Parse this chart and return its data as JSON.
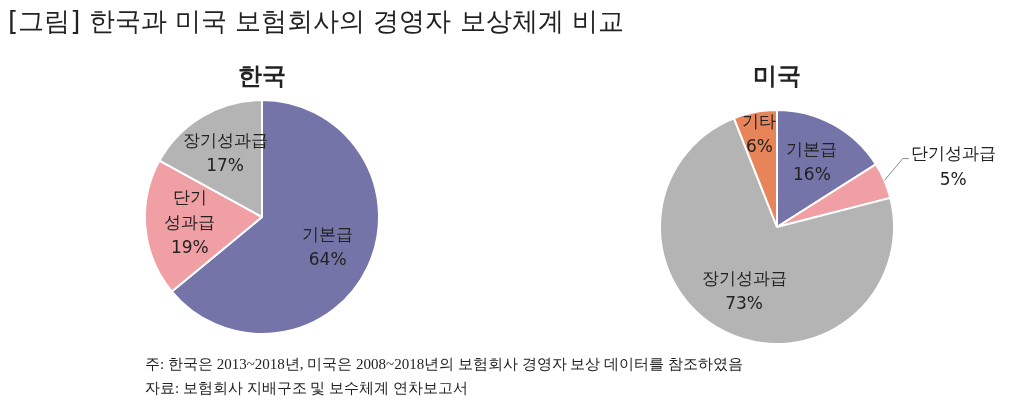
{
  "chart_data": [
    {
      "type": "pie",
      "title": "한국",
      "annotations": [
        "[그림] 한국과 미국 보험회사의 경영자 보상체계 비교"
      ],
      "categories": [
        "기본급",
        "단기성과급",
        "장기성과급"
      ],
      "values": [
        64,
        19,
        17
      ],
      "value_labels": [
        "64%",
        "19%",
        "17%"
      ],
      "colors": [
        "#7474a8",
        "#f0a0a4",
        "#b4b4b4"
      ]
    },
    {
      "type": "pie",
      "title": "미국",
      "annotations": [
        "주: 한국은 2013~2018년, 미국은 2008~2018년의 보험회사 경영자 보상 데이터를 참조하였음",
        "자료: 보험회사 지배구조 및 보수체계 연차보고서"
      ],
      "categories": [
        "기본급",
        "단기성과급",
        "장기성과급",
        "기타"
      ],
      "values": [
        16,
        5,
        73,
        6
      ],
      "value_labels": [
        "16%",
        "5%",
        "73%",
        "6%"
      ],
      "colors": [
        "#7474a8",
        "#f0a0a4",
        "#b4b4b4",
        "#e8845a"
      ]
    }
  ]
}
